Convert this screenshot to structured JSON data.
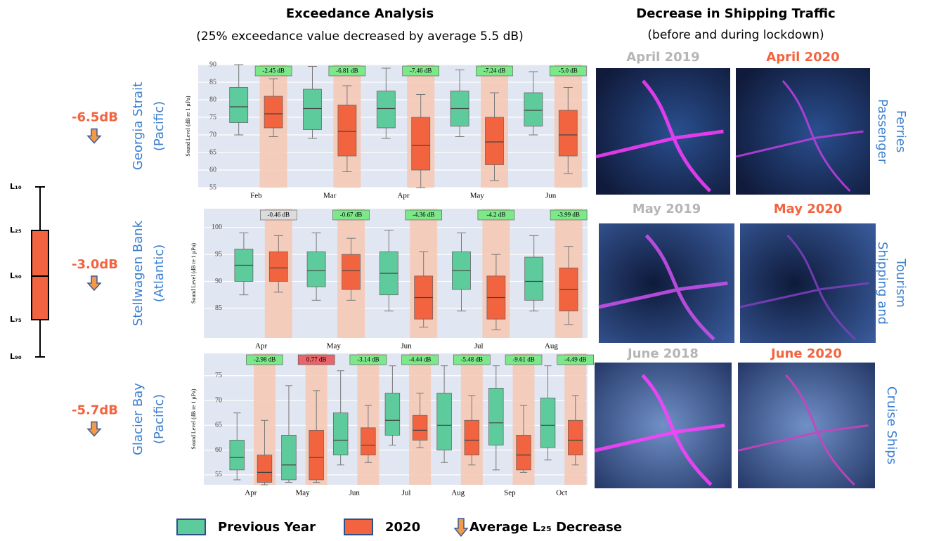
{
  "title": "Exceedance Analysis",
  "subtitle": "(25% exceedance value decreased by average 5.5 dB)",
  "maps_title": "Decrease in Shipping Traffic",
  "maps_subtitle": "(before and during lockdown)",
  "box_key": [
    "L₁₀",
    "L₂₅",
    "L₅₀",
    "L₇₅",
    "L₉₀"
  ],
  "arrow_legend": "Average L₂₅ Decrease",
  "chart_data": [
    {
      "type": "box",
      "site": [
        "Georgia Strait",
        "(Pacific)"
      ],
      "change": "-6.5dB",
      "ylabel": "Sound Level (dB re 1 µPa)",
      "categories": [
        "Feb",
        "Mar",
        "Apr",
        "May",
        "Jun"
      ],
      "ylim": [
        55,
        90
      ],
      "yticks": [
        55,
        60,
        65,
        70,
        75,
        80,
        85,
        90
      ],
      "grid": true,
      "series": [
        {
          "name": "Previous Year",
          "color": "#5ecb9c",
          "values": [
            [
              70,
              73.5,
              78,
              83.5,
              90
            ],
            [
              69,
              71.5,
              77.5,
              83,
              89.5
            ],
            [
              69,
              72,
              77.5,
              82.5,
              89
            ],
            [
              69.5,
              72.5,
              77.5,
              82.5,
              88.5
            ],
            [
              70,
              72.5,
              77,
              82,
              88
            ]
          ]
        },
        {
          "name": "2020",
          "color": "#f2643f",
          "values": [
            [
              69.5,
              72,
              76,
              81,
              86
            ],
            [
              59.5,
              64,
              71,
              78.5,
              84
            ],
            [
              55,
              60,
              67,
              75,
              81.5
            ],
            [
              57,
              61.5,
              68,
              75,
              82
            ],
            [
              59,
              64,
              70,
              77,
              83.5
            ]
          ]
        }
      ],
      "annotations": [
        "-2.45 dB",
        "-6.81 dB",
        "-7.46 dB",
        "-7.24 dB",
        "-5.0 dB"
      ],
      "annotation_colors": [
        "#7de889",
        "#7de889",
        "#7de889",
        "#7de889",
        "#7de889"
      ]
    },
    {
      "type": "box",
      "site": [
        "Stellwagen Bank",
        "(Atlantic)"
      ],
      "change": "-3.0dB",
      "ylabel": "Sound Level (dB re 1 µPa)",
      "categories": [
        "Apr",
        "May",
        "Jun",
        "Jul",
        "Aug"
      ],
      "ylim": [
        79.5,
        103.5
      ],
      "yticks": [
        85,
        90,
        95,
        100
      ],
      "grid": true,
      "series": [
        {
          "name": "Previous Year",
          "color": "#5ecb9c",
          "values": [
            [
              87.5,
              90,
              93,
              96,
              99
            ],
            [
              86.5,
              89,
              92,
              95.5,
              99
            ],
            [
              84.5,
              87.5,
              91.5,
              95.5,
              99.5
            ],
            [
              84.5,
              88.5,
              92,
              95.5,
              99
            ],
            [
              84.5,
              86.5,
              90,
              94.5,
              98.5
            ]
          ]
        },
        {
          "name": "2020",
          "color": "#f2643f",
          "values": [
            [
              88,
              90,
              92.5,
              95.5,
              98.5
            ],
            [
              86.5,
              88.5,
              92,
              95,
              98
            ],
            [
              81.5,
              83,
              87,
              91,
              95.5
            ],
            [
              81,
              83,
              87,
              91,
              95
            ],
            [
              82,
              84.5,
              88.5,
              92.5,
              96.5
            ]
          ]
        }
      ],
      "annotations": [
        "-0.46 dB",
        "-0.67 dB",
        "-4.36 dB",
        "-4.2 dB",
        "-3.99 dB"
      ],
      "annotation_colors": [
        "#dcdcdc",
        "#7de889",
        "#7de889",
        "#7de889",
        "#7de889"
      ]
    },
    {
      "type": "box",
      "site": [
        "Glacier Bay",
        "(Pacific)"
      ],
      "change": "-5.7dB",
      "ylabel": "Sound Level (dB re 1 µPa)",
      "categories": [
        "Apr",
        "May",
        "Jun",
        "Jul",
        "Aug",
        "Sep",
        "Oct"
      ],
      "ylim": [
        53,
        79.5
      ],
      "yticks": [
        55,
        60,
        65,
        70,
        75
      ],
      "grid": true,
      "series": [
        {
          "name": "Previous Year",
          "color": "#5ecb9c",
          "values": [
            [
              54,
              56,
              58.5,
              62,
              67.5
            ],
            [
              53.5,
              54,
              57,
              63,
              73
            ],
            [
              57,
              59,
              62,
              67.5,
              76
            ],
            [
              61,
              63,
              66,
              71.5,
              77
            ],
            [
              57.5,
              60,
              65,
              71.5,
              77
            ],
            [
              56,
              61,
              65.5,
              72.5,
              77
            ],
            [
              58,
              60.5,
              65,
              70.5,
              77
            ]
          ]
        },
        {
          "name": "2020",
          "color": "#f2643f",
          "values": [
            [
              53,
              53.5,
              55.5,
              59,
              66
            ],
            [
              53.5,
              54,
              58.5,
              64,
              72
            ],
            [
              57.5,
              59,
              61,
              64.5,
              69
            ],
            [
              60.5,
              62,
              64,
              67,
              71.5
            ],
            [
              57,
              59,
              62,
              66,
              71
            ],
            [
              55.5,
              56,
              59,
              63,
              69
            ],
            [
              57,
              59,
              62,
              66,
              71
            ]
          ]
        }
      ],
      "annotations": [
        "-2.98 dB",
        "0.77 dB",
        "-3.14 dB",
        "-4.44 dB",
        "-5.48 dB",
        "-9.61 dB",
        "-4.49 dB"
      ],
      "annotation_colors": [
        "#7de889",
        "#e8646a",
        "#7de889",
        "#7de889",
        "#7de889",
        "#7de889",
        "#7de889"
      ]
    }
  ],
  "maps": [
    {
      "before": "April 2019",
      "after": "April 2020",
      "label": [
        "Passenger",
        "Ferries"
      ]
    },
    {
      "before": "May 2019",
      "after": "May 2020",
      "label": [
        "Shipping and",
        "Tourism"
      ]
    },
    {
      "before": "June 2018",
      "after": "June 2020",
      "label": [
        "Cruise Ships"
      ]
    }
  ]
}
